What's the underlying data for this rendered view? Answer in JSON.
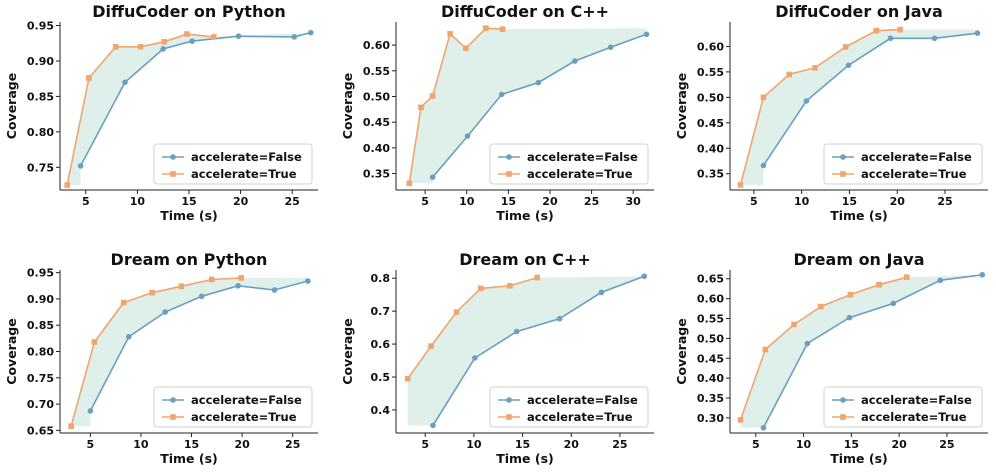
{
  "colors": {
    "false_series": "#6a9fc0",
    "true_series": "#f0a56e",
    "fill": "#dff0ea"
  },
  "chart_data": [
    {
      "type": "line",
      "title": "DiffuCoder on Python",
      "xlabel": "Time (s)",
      "ylabel": "Coverage",
      "xlim": [
        2.5,
        27.5
      ],
      "ylim": [
        0.718,
        0.955
      ],
      "xticks": [
        5,
        10,
        15,
        20,
        25
      ],
      "yticks": [
        0.75,
        0.8,
        0.85,
        0.9,
        0.95
      ],
      "ytick_labels": [
        "0.75",
        "0.80",
        "0.85",
        "0.90",
        "0.95"
      ],
      "legend": "lower-right",
      "series": [
        {
          "name": "accelerate=False",
          "x": [
            4.5,
            8.8,
            12.5,
            15.3,
            19.8,
            25.2,
            26.8
          ],
          "y": [
            0.752,
            0.87,
            0.917,
            0.928,
            0.935,
            0.934,
            0.94
          ]
        },
        {
          "name": "accelerate=True",
          "x": [
            3.2,
            5.3,
            7.9,
            10.3,
            12.6,
            14.8,
            17.4
          ],
          "y": [
            0.725,
            0.876,
            0.92,
            0.92,
            0.927,
            0.938,
            0.934
          ]
        }
      ]
    },
    {
      "type": "line",
      "title": "DiffuCoder on C++",
      "xlabel": "Time (s)",
      "ylabel": "Coverage",
      "xlim": [
        1.5,
        32.5
      ],
      "ylim": [
        0.318,
        0.645
      ],
      "xticks": [
        5,
        10,
        15,
        20,
        25,
        30
      ],
      "yticks": [
        0.35,
        0.4,
        0.45,
        0.5,
        0.55,
        0.6
      ],
      "ytick_labels": [
        "0.35",
        "0.40",
        "0.45",
        "0.50",
        "0.55",
        "0.60"
      ],
      "legend": "lower-right",
      "series": [
        {
          "name": "accelerate=False",
          "x": [
            5.9,
            10.1,
            14.2,
            18.6,
            23.0,
            27.3,
            31.6
          ],
          "y": [
            0.343,
            0.423,
            0.504,
            0.527,
            0.569,
            0.596,
            0.621
          ]
        },
        {
          "name": "accelerate=True",
          "x": [
            3.1,
            4.5,
            5.9,
            8.0,
            9.9,
            12.3,
            14.3
          ],
          "y": [
            0.331,
            0.479,
            0.501,
            0.622,
            0.594,
            0.633,
            0.631
          ]
        }
      ]
    },
    {
      "type": "line",
      "title": "DiffuCoder on Java",
      "xlabel": "Time (s)",
      "ylabel": "Coverage",
      "xlim": [
        2.5,
        29.5
      ],
      "ylim": [
        0.318,
        0.648
      ],
      "xticks": [
        5,
        10,
        15,
        20,
        25
      ],
      "yticks": [
        0.35,
        0.4,
        0.45,
        0.5,
        0.55,
        0.6
      ],
      "ytick_labels": [
        "0.35",
        "0.40",
        "0.45",
        "0.50",
        "0.55",
        "0.60"
      ],
      "legend": "lower-right",
      "series": [
        {
          "name": "accelerate=False",
          "x": [
            6.0,
            10.5,
            14.9,
            19.3,
            23.9,
            28.4
          ],
          "y": [
            0.366,
            0.493,
            0.563,
            0.616,
            0.616,
            0.626
          ]
        },
        {
          "name": "accelerate=True",
          "x": [
            3.6,
            6.0,
            8.7,
            11.4,
            14.6,
            17.8,
            20.3
          ],
          "y": [
            0.328,
            0.5,
            0.545,
            0.558,
            0.599,
            0.631,
            0.633
          ]
        }
      ]
    },
    {
      "type": "line",
      "title": "Dream on Python",
      "xlabel": "Time (s)",
      "ylabel": "Coverage",
      "xlim": [
        2.0,
        27.5
      ],
      "ylim": [
        0.645,
        0.955
      ],
      "xticks": [
        5,
        10,
        15,
        20,
        25
      ],
      "yticks": [
        0.65,
        0.7,
        0.75,
        0.8,
        0.85,
        0.9,
        0.95
      ],
      "ytick_labels": [
        "0.65",
        "0.70",
        "0.75",
        "0.80",
        "0.85",
        "0.90",
        "0.95"
      ],
      "legend": "lower-right",
      "series": [
        {
          "name": "accelerate=False",
          "x": [
            5.0,
            8.8,
            12.4,
            16.0,
            19.6,
            23.2,
            26.5
          ],
          "y": [
            0.687,
            0.828,
            0.875,
            0.905,
            0.925,
            0.917,
            0.934
          ]
        },
        {
          "name": "accelerate=True",
          "x": [
            3.1,
            5.4,
            8.3,
            11.1,
            14.0,
            17.0,
            19.9
          ],
          "y": [
            0.658,
            0.818,
            0.893,
            0.912,
            0.924,
            0.937,
            0.94
          ]
        }
      ]
    },
    {
      "type": "line",
      "title": "Dream on C++",
      "xlabel": "Time (s)",
      "ylabel": "Coverage",
      "xlim": [
        2.0,
        28.5
      ],
      "ylim": [
        0.33,
        0.825
      ],
      "xticks": [
        5,
        10,
        15,
        20,
        25
      ],
      "yticks": [
        0.4,
        0.5,
        0.6,
        0.7,
        0.8
      ],
      "ytick_labels": [
        "0.4",
        "0.5",
        "0.6",
        "0.7",
        "0.8"
      ],
      "legend": "lower-right",
      "series": [
        {
          "name": "accelerate=False",
          "x": [
            5.8,
            10.1,
            14.4,
            18.8,
            23.1,
            27.5
          ],
          "y": [
            0.353,
            0.558,
            0.638,
            0.677,
            0.757,
            0.806
          ]
        },
        {
          "name": "accelerate=True",
          "x": [
            3.2,
            5.6,
            8.2,
            10.7,
            13.7,
            16.5
          ],
          "y": [
            0.495,
            0.594,
            0.697,
            0.769,
            0.777,
            0.802
          ]
        }
      ]
    },
    {
      "type": "line",
      "title": "Dream on Java",
      "xlabel": "Time (s)",
      "ylabel": "Coverage",
      "xlim": [
        2.3,
        29.3
      ],
      "ylim": [
        0.262,
        0.672
      ],
      "xticks": [
        5,
        10,
        15,
        20,
        25
      ],
      "yticks": [
        0.3,
        0.35,
        0.4,
        0.45,
        0.5,
        0.55,
        0.6,
        0.65
      ],
      "ytick_labels": [
        "0.30",
        "0.35",
        "0.40",
        "0.45",
        "0.50",
        "0.55",
        "0.60",
        "0.65"
      ],
      "legend": "lower-right",
      "series": [
        {
          "name": "accelerate=False",
          "x": [
            5.8,
            10.4,
            14.8,
            19.4,
            24.3,
            28.7
          ],
          "y": [
            0.275,
            0.487,
            0.552,
            0.588,
            0.646,
            0.66
          ]
        },
        {
          "name": "accelerate=True",
          "x": [
            3.4,
            6.0,
            9.0,
            11.8,
            14.9,
            17.9,
            20.8
          ],
          "y": [
            0.295,
            0.472,
            0.535,
            0.58,
            0.61,
            0.635,
            0.654
          ]
        }
      ]
    }
  ]
}
